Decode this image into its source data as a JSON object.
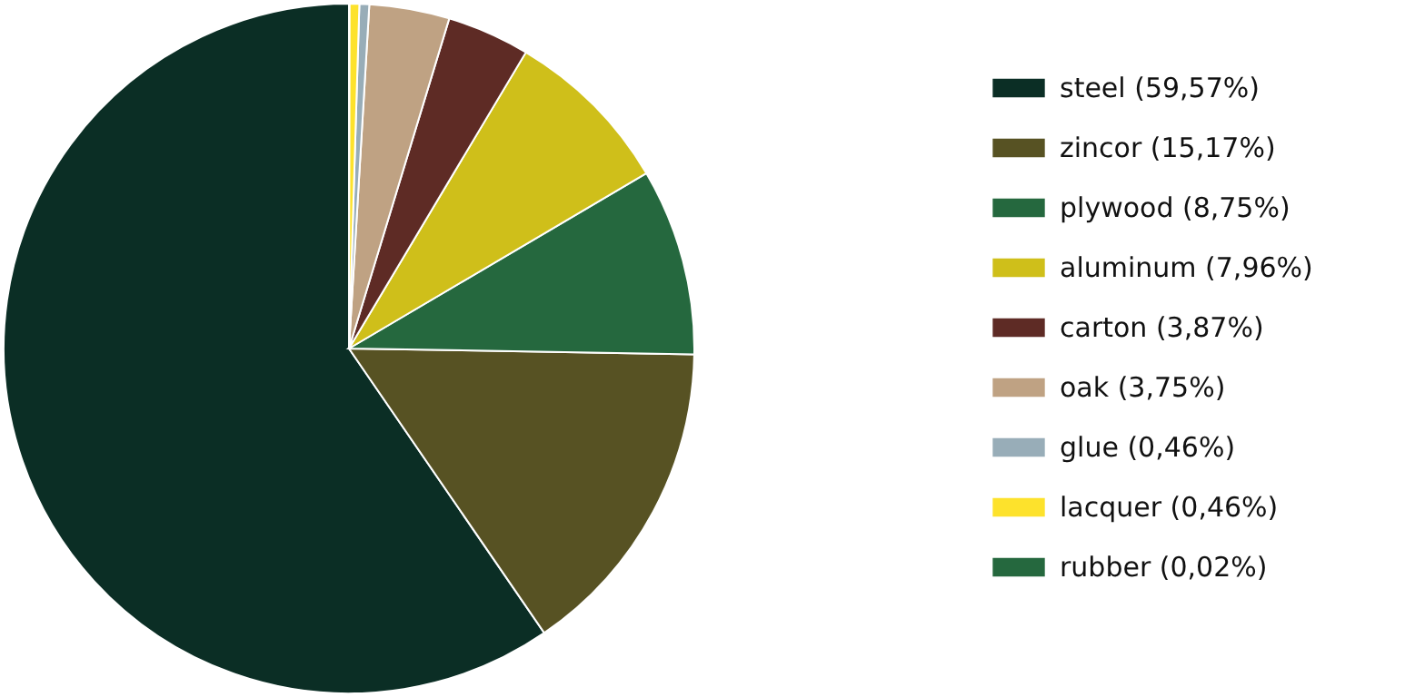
{
  "chart_data": {
    "type": "pie",
    "categories": [
      "steel (59,57%)",
      "zincor (15,17%)",
      "plywood (8,75%)",
      "aluminum (7,96%)",
      "carton (3,87%)",
      "oak (3,75%)",
      "glue (0,46%)",
      "lacquer (0,46%)",
      "rubber (0,02%)"
    ],
    "values": [
      59.57,
      15.17,
      8.75,
      7.96,
      3.87,
      3.75,
      0.46,
      0.46,
      0.02
    ],
    "colors": [
      "#0b2e25",
      "#575223",
      "#25683e",
      "#cfbf1a",
      "#5e2b25",
      "#bfa283",
      "#98adb8",
      "#fde22c",
      "#25683e"
    ],
    "legend": "right"
  }
}
